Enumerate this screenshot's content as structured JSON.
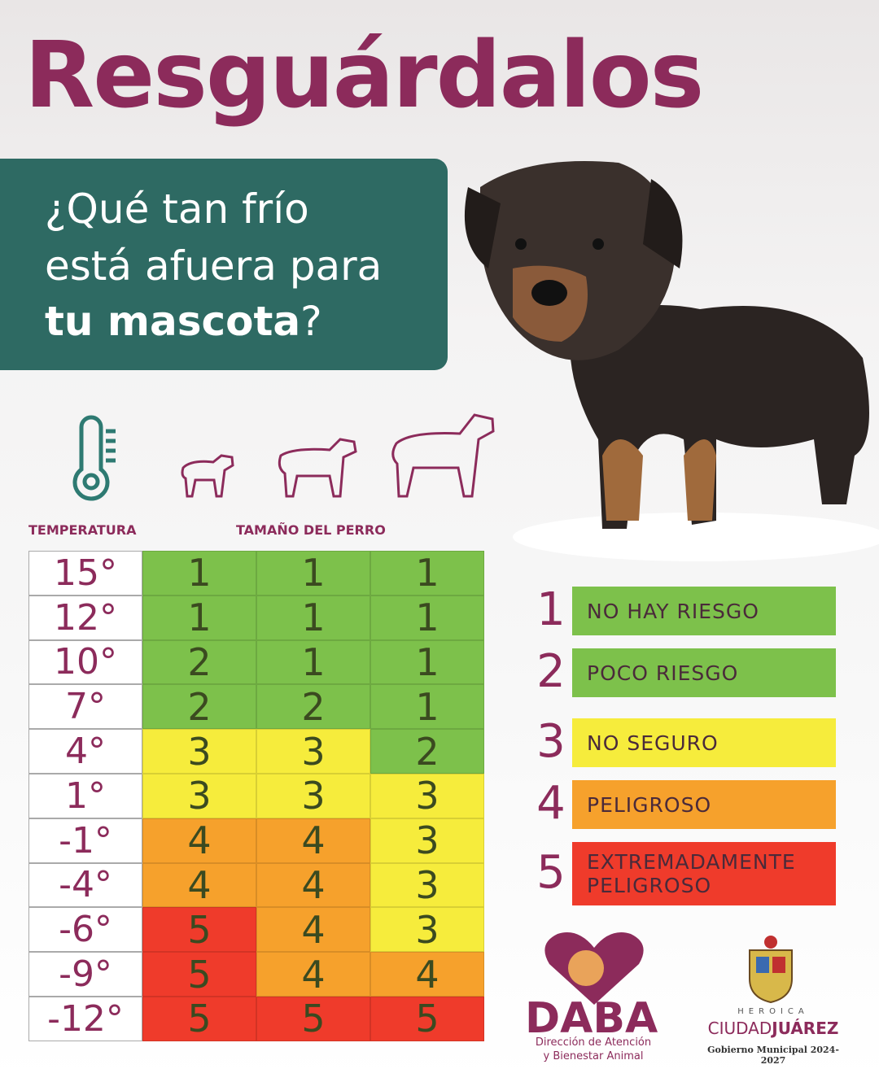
{
  "title": "Resguárdalos",
  "question": {
    "lines": [
      "¿Qué tan frío",
      "está afuera para"
    ],
    "bold": "tu mascota",
    "end": "?"
  },
  "table": {
    "headers": {
      "temperature": "TEMPERATURA",
      "size": "TAMAÑO DEL PERRO"
    },
    "rows": [
      {
        "temp": "15°",
        "values": [
          1,
          1,
          1
        ]
      },
      {
        "temp": "12°",
        "values": [
          1,
          1,
          1
        ]
      },
      {
        "temp": "10°",
        "values": [
          2,
          1,
          1
        ]
      },
      {
        "temp": "7°",
        "values": [
          2,
          2,
          1
        ]
      },
      {
        "temp": "4°",
        "values": [
          3,
          3,
          2
        ]
      },
      {
        "temp": "1°",
        "values": [
          3,
          3,
          3
        ]
      },
      {
        "temp": "-1°",
        "values": [
          4,
          4,
          3
        ]
      },
      {
        "temp": "-4°",
        "values": [
          4,
          4,
          3
        ]
      },
      {
        "temp": "-6°",
        "values": [
          5,
          4,
          3
        ]
      },
      {
        "temp": "-9°",
        "values": [
          5,
          4,
          4
        ]
      },
      {
        "temp": "-12°",
        "values": [
          5,
          5,
          5
        ]
      }
    ]
  },
  "legend": [
    {
      "level": 1,
      "lines": [
        "NO HAY RIESGO"
      ],
      "color": "#7dc14b"
    },
    {
      "level": 2,
      "lines": [
        "POCO RIESGO"
      ],
      "color": "#7dc14b"
    },
    {
      "level": 3,
      "lines": [
        "NO SEGURO"
      ],
      "color": "#f6ec3c"
    },
    {
      "level": 4,
      "lines": [
        "PELIGROSO"
      ],
      "color": "#f6a12c"
    },
    {
      "level": 5,
      "lines": [
        "EXTREMADAMENTE",
        "PELIGROSO"
      ],
      "color": "#ef3b2b"
    }
  ],
  "logos": {
    "daba": {
      "name": "DABA",
      "lines": [
        "Dirección de Atención",
        "y Bienestar Animal"
      ]
    },
    "juarez": {
      "top": "HEROICA",
      "city": "CIUDAD",
      "city_bold": "JUÁREZ",
      "gov": "Gobierno Municipal 2024-2027"
    }
  }
}
